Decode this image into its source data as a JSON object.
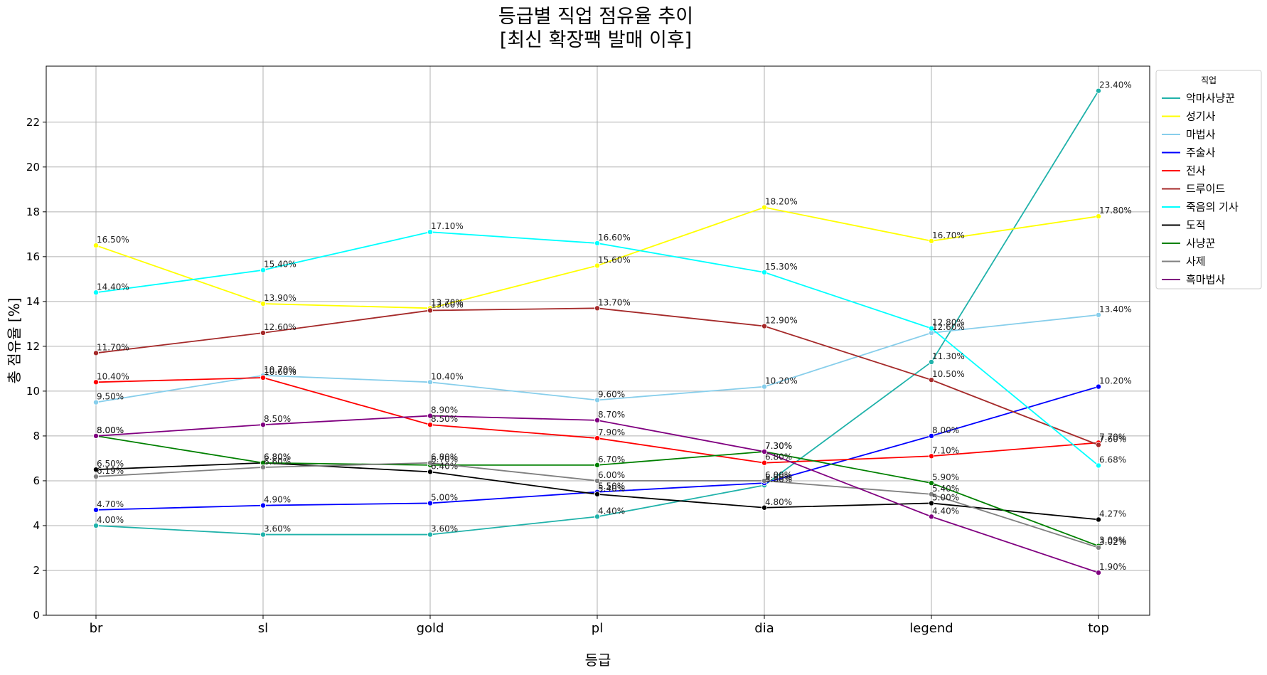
{
  "chart_data": {
    "type": "line",
    "title_line1": "등급별 직업 점유율 추이",
    "title_line2": "[최신 확장팩 발매 이후]",
    "xlabel": "등급",
    "ylabel": "총 점유율 [%]",
    "categories": [
      "br",
      "sl",
      "gold",
      "pl",
      "dia",
      "legend",
      "top"
    ],
    "ylim": [
      0,
      24.5
    ],
    "yticks": [
      "0",
      "2",
      "4",
      "6",
      "8",
      "10",
      "12",
      "14",
      "16",
      "18",
      "20",
      "22"
    ],
    "grid": true,
    "legend": {
      "title": "직업",
      "placement": "outside-top-right"
    },
    "series": [
      {
        "name": "악마사냥꾼",
        "color": "#20b2aa",
        "values": [
          4.0,
          3.6,
          3.6,
          4.4,
          5.8,
          11.3,
          23.4
        ],
        "labels": [
          "4.00%",
          "3.60%",
          "3.60%",
          "4.40%",
          "5.80%",
          "11.30%",
          "23.40%"
        ]
      },
      {
        "name": "성기사",
        "color": "#ffff00",
        "values": [
          16.5,
          13.9,
          13.7,
          15.6,
          18.2,
          16.7,
          17.8
        ],
        "labels": [
          "16.50%",
          "13.90%",
          "13.70%",
          "15.60%",
          "18.20%",
          "16.70%",
          "17.80%"
        ]
      },
      {
        "name": "마법사",
        "color": "#87ceeb",
        "values": [
          9.5,
          10.7,
          10.4,
          9.6,
          10.2,
          12.6,
          13.4
        ],
        "labels": [
          "9.50%",
          "10.70%",
          "10.40%",
          "9.60%",
          "10.20%",
          "12.60%",
          "13.40%"
        ]
      },
      {
        "name": "주술사",
        "color": "#0000ff",
        "values": [
          4.7,
          4.9,
          5.0,
          5.5,
          5.9,
          8.0,
          10.2
        ],
        "labels": [
          "4.70%",
          "4.90%",
          "5.00%",
          "5.50%",
          "5.90%",
          "8.00%",
          "10.20%"
        ]
      },
      {
        "name": "전사",
        "color": "#ff0000",
        "values": [
          10.4,
          10.6,
          8.5,
          7.9,
          6.8,
          7.1,
          7.7
        ],
        "labels": [
          "10.40%",
          "10.60%",
          "8.50%",
          "7.90%",
          "6.80%",
          "7.10%",
          "7.70%"
        ]
      },
      {
        "name": "드루이드",
        "color": "#a52a2a",
        "values": [
          11.7,
          12.6,
          13.6,
          13.7,
          12.9,
          10.5,
          7.6
        ],
        "labels": [
          "11.70%",
          "12.60%",
          "13.60%",
          "13.70%",
          "12.90%",
          "10.50%",
          "7.60%"
        ]
      },
      {
        "name": "죽음의 기사",
        "color": "#00ffff",
        "values": [
          14.4,
          15.4,
          17.1,
          16.6,
          15.3,
          12.8,
          6.68
        ],
        "labels": [
          "14.40%",
          "15.40%",
          "17.10%",
          "16.60%",
          "15.30%",
          "12.80%",
          "6.68%"
        ]
      },
      {
        "name": "도적",
        "color": "#000000",
        "values": [
          6.5,
          6.8,
          6.4,
          5.4,
          4.8,
          5.0,
          4.27
        ],
        "labels": [
          "6.50%",
          "6.80%",
          "6.40%",
          "5.40%",
          "4.80%",
          "5.00%",
          "4.27%"
        ]
      },
      {
        "name": "사냥꾼",
        "color": "#008000",
        "values": [
          8.0,
          6.8,
          6.7,
          6.7,
          7.3,
          5.9,
          3.09
        ],
        "labels": [
          "8.00%",
          "6.80%",
          "6.70%",
          "6.70%",
          "7.30%",
          "5.90%",
          "3.09%"
        ]
      },
      {
        "name": "사제",
        "color": "#808080",
        "values": [
          6.19,
          6.6,
          6.8,
          6.0,
          6.0,
          5.4,
          3.02
        ],
        "labels": [
          "6.19%",
          "6.60%",
          "6.80%",
          "6.00%",
          "6.00%",
          "5.40%",
          "3.02%"
        ]
      },
      {
        "name": "흑마법사",
        "color": "#800080",
        "values": [
          8.0,
          8.5,
          8.9,
          8.7,
          7.3,
          4.4,
          1.9
        ],
        "labels": [
          "8.00%",
          "8.50%",
          "8.90%",
          "8.70%",
          "7.30%",
          "4.40%",
          "1.90%"
        ]
      }
    ]
  }
}
